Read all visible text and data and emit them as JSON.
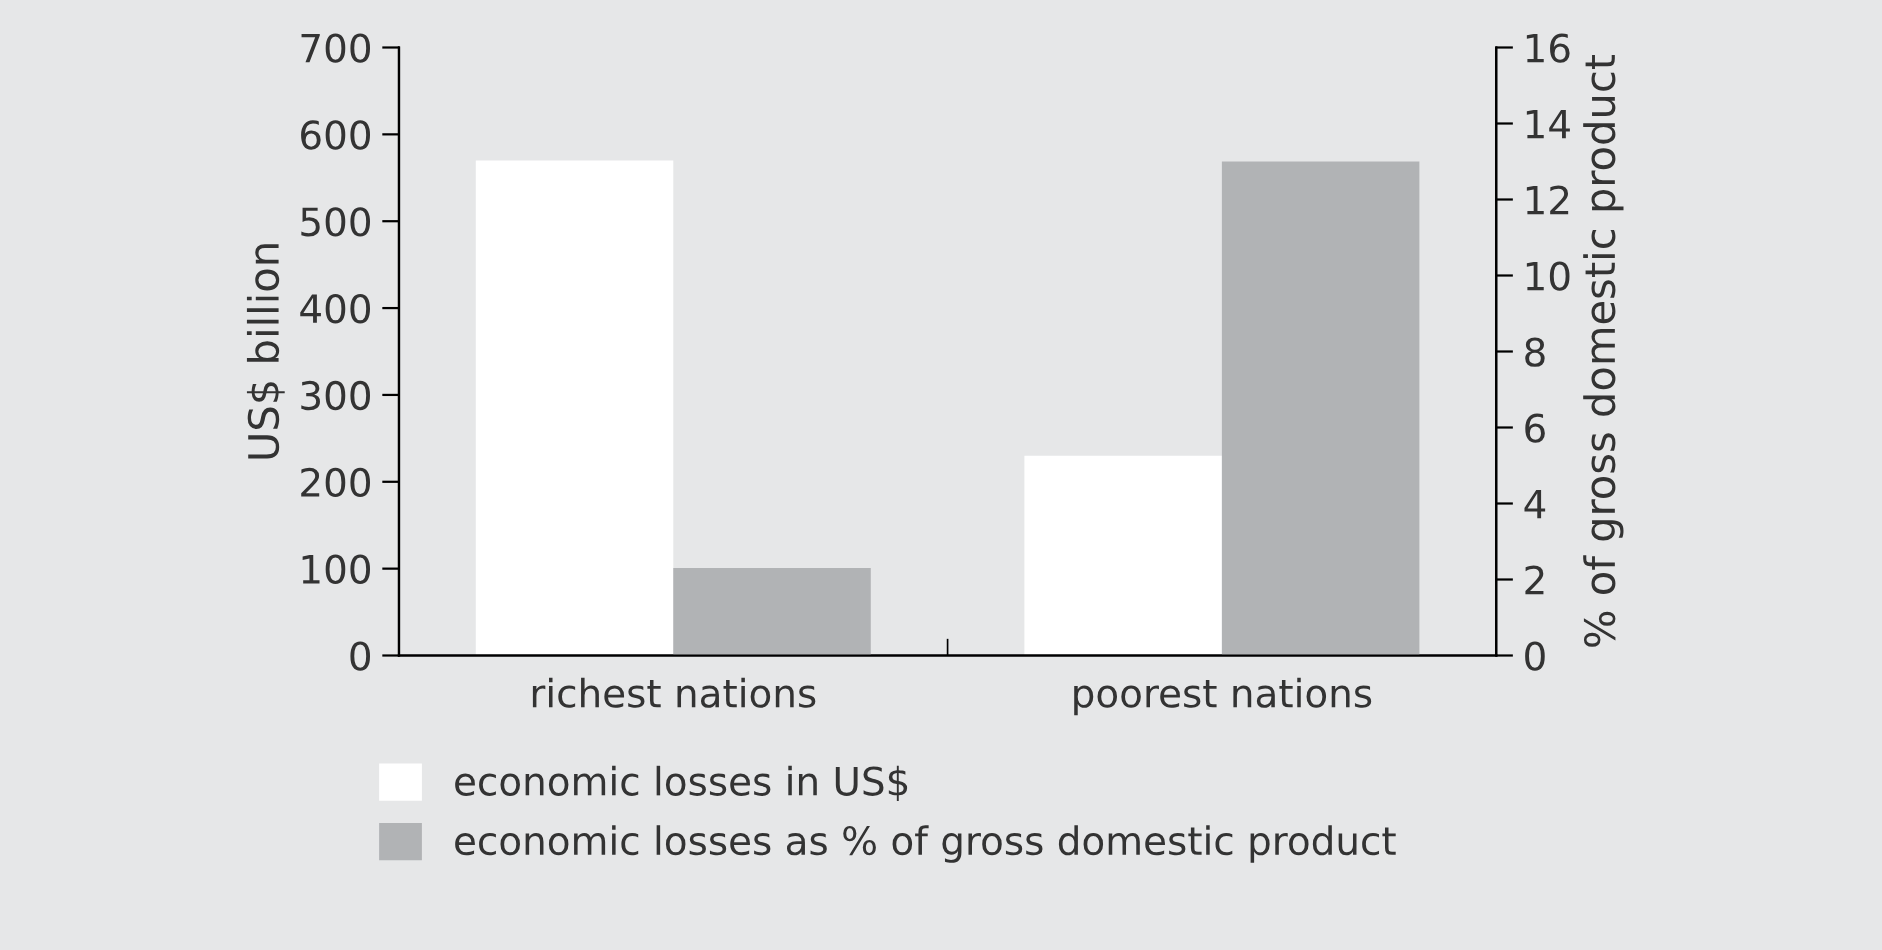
{
  "chart_data": {
    "type": "bar",
    "categories": [
      "richest nations",
      "poorest nations"
    ],
    "ylabel": "US$ billion",
    "y2label": "% of gross domestic product",
    "series": [
      {
        "name": "economic losses in US$",
        "color": "#ffffff",
        "values": [
          570,
          230
        ]
      },
      {
        "name": "economic losses as % of gross domestic product",
        "color": "#b1b3b5",
        "values": [
          2.3,
          13
        ],
        "axis": "y2"
      }
    ],
    "ylim": [
      0,
      700
    ],
    "yticks": [
      0,
      100,
      200,
      300,
      400,
      500,
      600,
      700
    ],
    "y2lim": [
      0,
      16
    ],
    "y2ticks": [
      0,
      2,
      4,
      6,
      8,
      10,
      12,
      14,
      16
    ],
    "grid": false,
    "legend": "bottom left"
  }
}
